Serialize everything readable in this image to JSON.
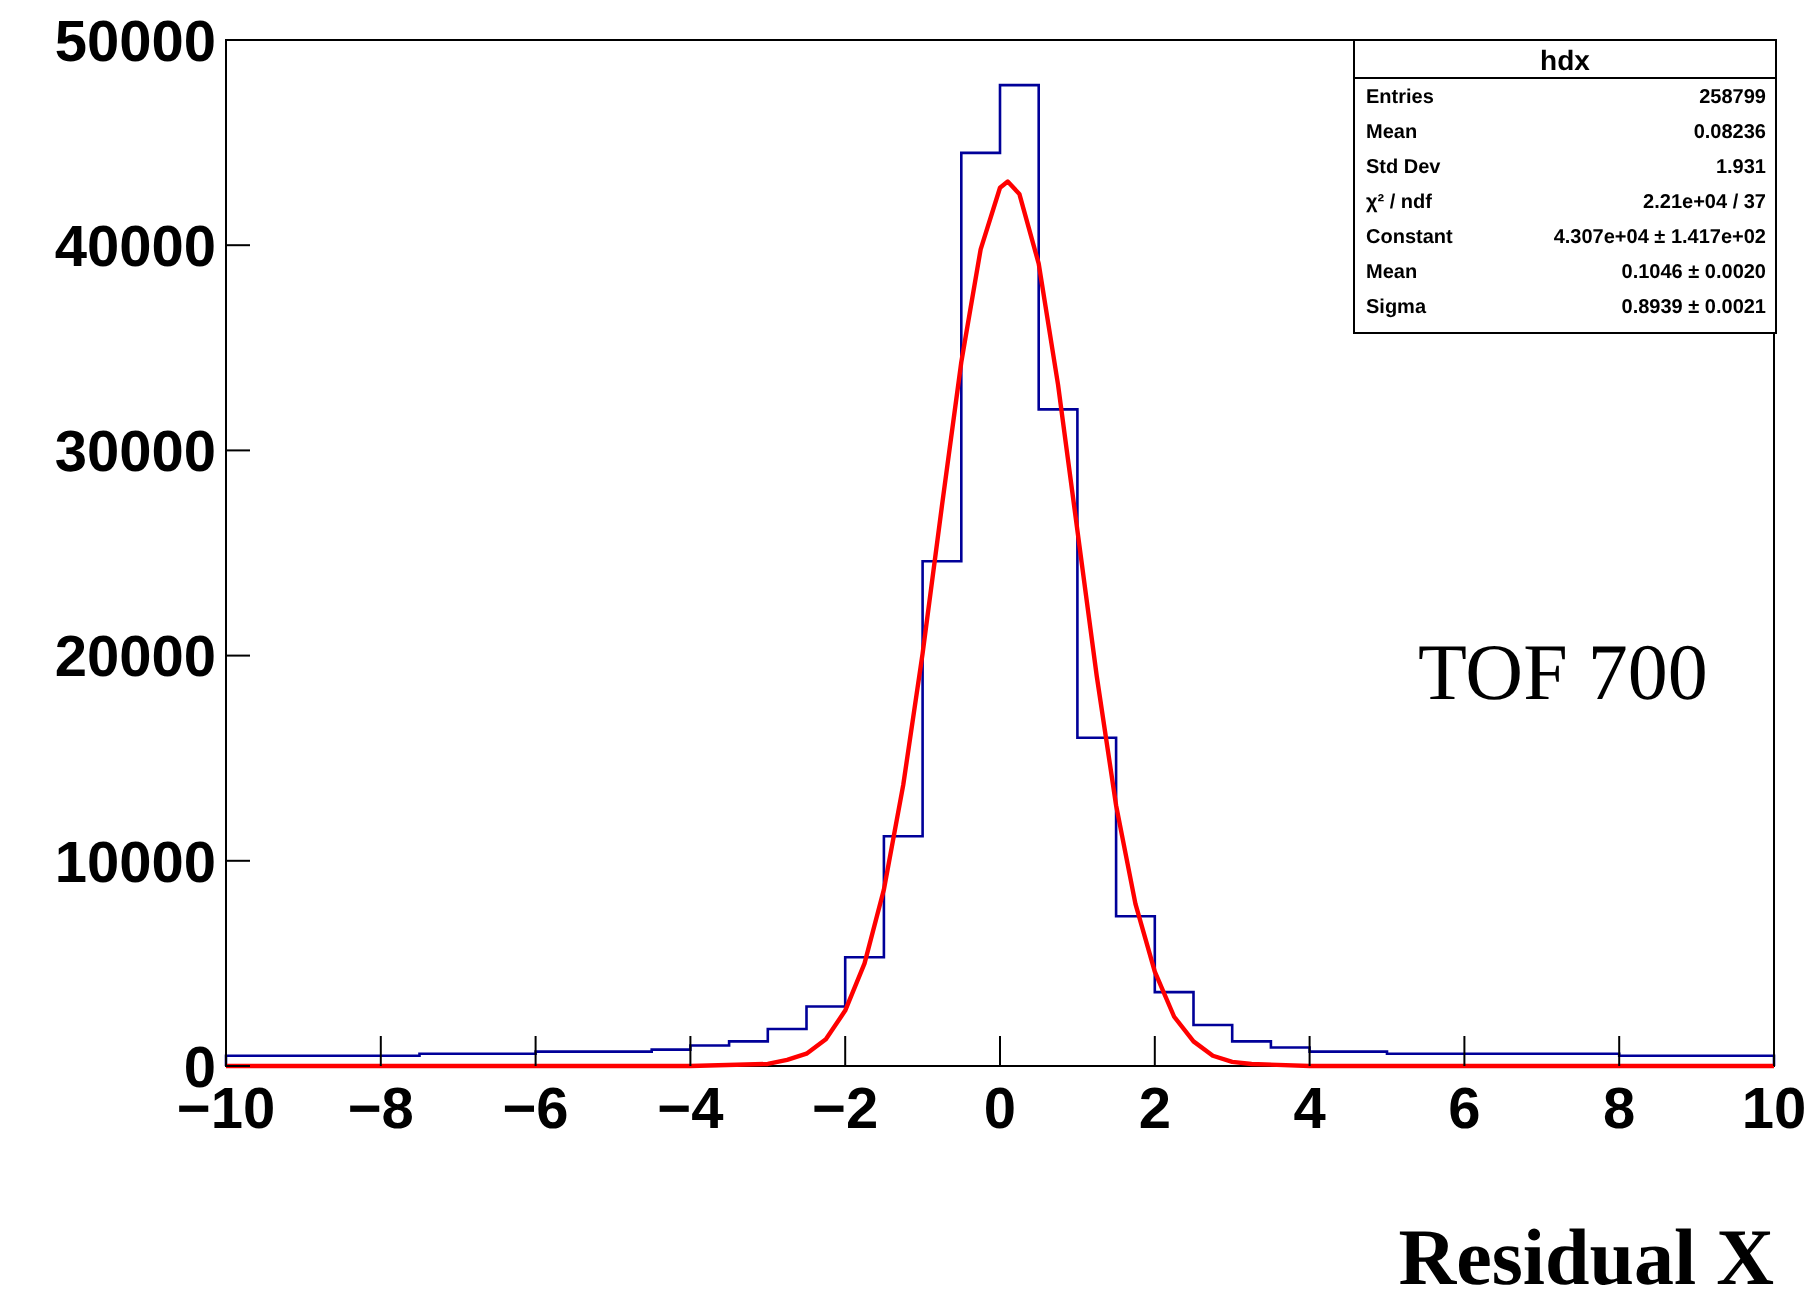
{
  "chart_data": {
    "type": "histogram",
    "xlabel": "Residual X",
    "bins": [
      -10,
      -9.5,
      -9,
      -8.5,
      -8,
      -7.5,
      -7,
      -6.5,
      -6,
      -5.5,
      -5,
      -4.5,
      -4,
      -3.5,
      -3,
      -2.5,
      -2,
      -1.5,
      -1,
      -0.5,
      0,
      0.5,
      1,
      1.5,
      2,
      2.5,
      3,
      3.5,
      4,
      4.5,
      5,
      5.5,
      6,
      6.5,
      7,
      7.5,
      8,
      8.5,
      9,
      9.5,
      10
    ],
    "series": [
      {
        "color": "#000099",
        "values": [
          500,
          500,
          500,
          500,
          500,
          600,
          600,
          600,
          700,
          700,
          700,
          800,
          1000,
          1200,
          1800,
          2900,
          5300,
          11200,
          24600,
          44500,
          47800,
          32000,
          16000,
          7300,
          3600,
          2000,
          1200,
          900,
          700,
          700,
          600,
          600,
          600,
          600,
          600,
          600,
          500,
          500,
          500,
          500
        ]
      },
      {
        "type": "line",
        "color": "#ff0000",
        "x": [
          -10,
          -4,
          -3,
          -2.75,
          -2.5,
          -2.25,
          -2,
          -1.75,
          -1.5,
          -1.25,
          -1,
          -0.75,
          -0.5,
          -0.25,
          0,
          0.1,
          0.25,
          0.5,
          0.75,
          1,
          1.25,
          1.5,
          1.75,
          2,
          2.25,
          2.5,
          2.75,
          3,
          3.25,
          4,
          10
        ],
        "values": [
          0,
          0,
          100,
          300,
          600,
          1300,
          2700,
          5000,
          8600,
          13700,
          20100,
          27300,
          34300,
          39800,
          42800,
          43100,
          42500,
          39100,
          33200,
          26100,
          19000,
          12700,
          7900,
          4600,
          2400,
          1200,
          500,
          200,
          100,
          0,
          0
        ]
      }
    ],
    "xlim": [
      -10,
      10
    ],
    "xticks": [
      {
        "value": -10,
        "label": "−10"
      },
      {
        "value": -8,
        "label": "−8"
      },
      {
        "value": -6,
        "label": "−6"
      },
      {
        "value": -4,
        "label": "−4"
      },
      {
        "value": -2,
        "label": "−2"
      },
      0,
      2,
      4,
      6,
      8,
      10
    ],
    "ylim": [
      0,
      50000
    ],
    "yticks": [
      0,
      10000,
      20000,
      30000,
      40000,
      50000
    ],
    "grid": false,
    "annotations": [
      "hdx",
      "Entries",
      "258799",
      "Mean",
      "0.08236",
      "Std Dev",
      "1.931",
      "χ² / ndf",
      "2.21e+04 / 37",
      "Constant",
      "4.307e+04 ± 1.417e+02",
      "Mean",
      "0.1046 ± 0.0020",
      "Sigma",
      "0.8939 ± 0.0021",
      "TOF 700"
    ]
  }
}
